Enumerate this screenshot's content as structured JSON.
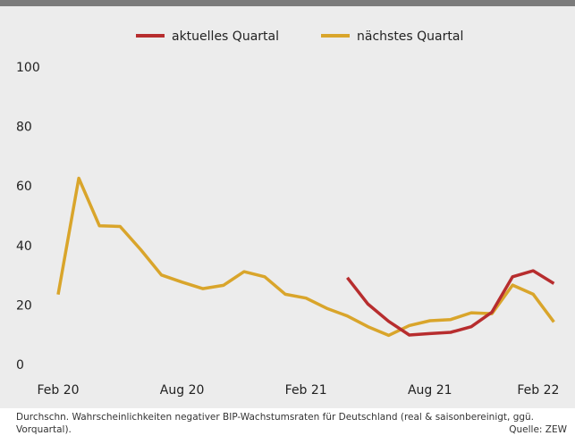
{
  "chart_data": {
    "type": "line",
    "title": "",
    "xlabel": "",
    "ylabel": "",
    "ylim": [
      0,
      100
    ],
    "yticks": [
      0,
      20,
      40,
      60,
      80,
      100
    ],
    "x_labels": [
      "Feb 20",
      "Aug 20",
      "Feb 21",
      "Aug 21",
      "Feb 22"
    ],
    "x": [
      "2020-02",
      "2020-03",
      "2020-04",
      "2020-05",
      "2020-06",
      "2020-07",
      "2020-08",
      "2020-09",
      "2020-10",
      "2020-11",
      "2020-12",
      "2021-01",
      "2021-02",
      "2021-03",
      "2021-04",
      "2021-05",
      "2021-06",
      "2021-07",
      "2021-08",
      "2021-09",
      "2021-10",
      "2021-11",
      "2021-12",
      "2022-01",
      "2022-02"
    ],
    "legend_position": "top",
    "grid": false,
    "series": [
      {
        "name": "aktuelles Quartal",
        "color": "#b72d2e",
        "values": [
          null,
          null,
          null,
          null,
          null,
          null,
          null,
          null,
          null,
          null,
          null,
          null,
          null,
          null,
          29.2,
          20.3,
          14.5,
          9.9,
          10.4,
          10.8,
          12.7,
          17.6,
          29.5,
          31.5,
          27.2
        ]
      },
      {
        "name": "nächstes Quartal",
        "color": "#d9a52b",
        "values": [
          23.5,
          62.6,
          46.6,
          46.4,
          38.6,
          30.1,
          27.7,
          25.5,
          26.6,
          31.2,
          29.5,
          23.6,
          22.3,
          18.9,
          16.3,
          12.7,
          9.8,
          13.1,
          14.7,
          15.1,
          17.4,
          17.1,
          26.7,
          23.6,
          14.3
        ]
      }
    ]
  },
  "caption": "Durchschn. Wahrscheinlichkeiten negativer BIP-Wachstumsraten für Deutschland (real & saisonbereinigt, ggü. Vorquartal).",
  "source": "Quelle: ZEW"
}
